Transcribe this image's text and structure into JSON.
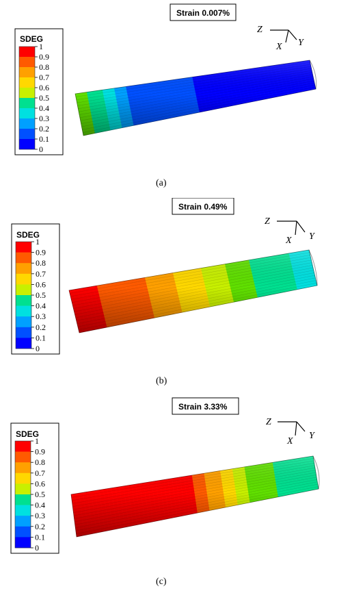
{
  "legend": {
    "title": "SDEG",
    "ticks": [
      "1",
      "0.9",
      "0.8",
      "0.7",
      "0.6",
      "0.5",
      "0.4",
      "0.3",
      "0.2",
      "0.1",
      "0"
    ],
    "colors": [
      "#ff0000",
      "#ff5a00",
      "#ffa000",
      "#ffd800",
      "#c8f000",
      "#60e000",
      "#00e090",
      "#00e0e0",
      "#00a0ff",
      "#0050ff",
      "#0000ff"
    ]
  },
  "axes": {
    "z": "Z",
    "x": "X",
    "y": "Y"
  },
  "panels": [
    {
      "strain_label": "Strain 0.007%",
      "caption": "(a)",
      "sdeg_profile": [
        0.55,
        0.1,
        0.05,
        0.02,
        0.0
      ]
    },
    {
      "strain_label": "Strain 0.49%",
      "caption": "(b)",
      "sdeg_profile": [
        1.0,
        0.9,
        0.7,
        0.45,
        0.3
      ]
    },
    {
      "strain_label": "Strain 3.33%",
      "caption": "(c)",
      "sdeg_profile": [
        1.0,
        1.0,
        0.95,
        0.5,
        0.35
      ]
    }
  ]
}
